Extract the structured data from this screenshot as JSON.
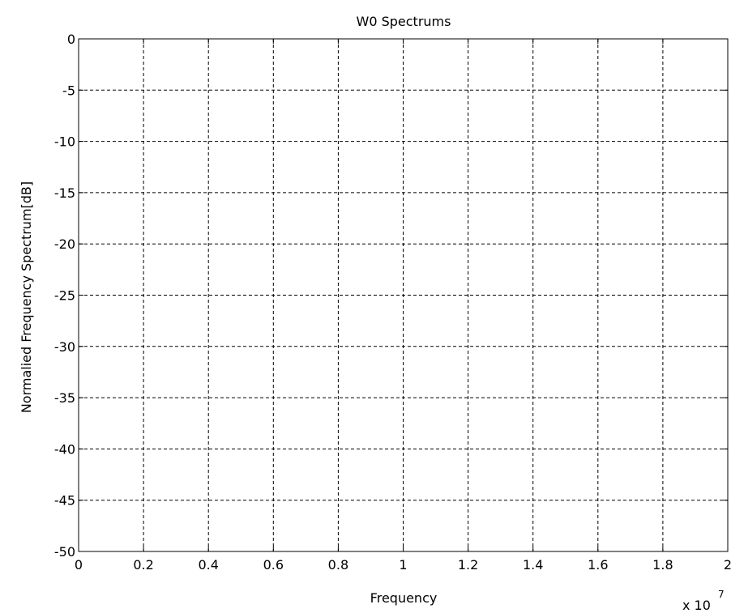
{
  "chart_data": {
    "type": "line",
    "title": "W0 Spectrums",
    "xlabel": "Frequency",
    "ylabel": "Normalied Frequency Spectrum[dB]",
    "x_exponent_base": "x 10",
    "x_exponent_power": "7",
    "xlim": [
      0,
      2
    ],
    "ylim": [
      -50,
      0
    ],
    "x_ticks": [
      0,
      0.2,
      0.4,
      0.6,
      0.8,
      1,
      1.2,
      1.4,
      1.6,
      1.8,
      2
    ],
    "x_tick_labels": [
      "0",
      "0.2",
      "0.4",
      "0.6",
      "0.8",
      "1",
      "1.2",
      "1.4",
      "1.6",
      "1.8",
      "2"
    ],
    "y_ticks": [
      0,
      -5,
      -10,
      -15,
      -20,
      -25,
      -30,
      -35,
      -40,
      -45,
      -50
    ],
    "y_tick_labels": [
      "0",
      "-5",
      "-10",
      "-15",
      "-20",
      "-25",
      "-30",
      "-35",
      "-40",
      "-45",
      "-50"
    ],
    "grid": true,
    "series": []
  }
}
